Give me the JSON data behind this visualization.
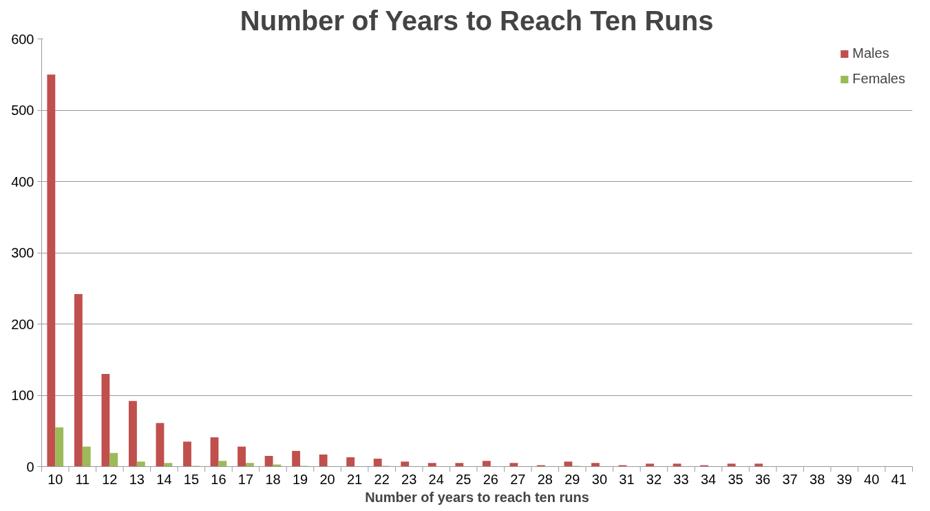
{
  "chart_data": {
    "type": "bar",
    "title": "Number of Years to Reach Ten Runs",
    "xlabel": "Number of years to reach ten runs",
    "categories": [
      "10",
      "11",
      "12",
      "13",
      "14",
      "15",
      "16",
      "17",
      "18",
      "19",
      "20",
      "21",
      "22",
      "23",
      "24",
      "25",
      "26",
      "27",
      "28",
      "29",
      "30",
      "31",
      "32",
      "33",
      "34",
      "35",
      "36",
      "37",
      "38",
      "39",
      "40",
      "41"
    ],
    "series": [
      {
        "name": "Males",
        "color": "#c0504d",
        "values": [
          550,
          242,
          130,
          92,
          61,
          35,
          41,
          28,
          15,
          22,
          17,
          13,
          11,
          7,
          5,
          5,
          8,
          5,
          2,
          7,
          5,
          2,
          4,
          4,
          2,
          4,
          4,
          0,
          0,
          0,
          0,
          0
        ]
      },
      {
        "name": "Females",
        "color": "#9bbb59",
        "values": [
          55,
          28,
          19,
          7,
          5,
          1,
          8,
          5,
          3,
          1,
          0,
          0,
          1,
          0,
          0,
          0,
          0,
          0,
          0,
          1,
          0,
          0,
          0,
          0,
          0,
          0,
          0,
          0,
          0,
          0,
          0,
          0
        ]
      }
    ],
    "ylim": [
      0,
      600
    ],
    "yticks": [
      0,
      100,
      200,
      300,
      400,
      500,
      600
    ],
    "grid": "y",
    "legend": "top right"
  }
}
